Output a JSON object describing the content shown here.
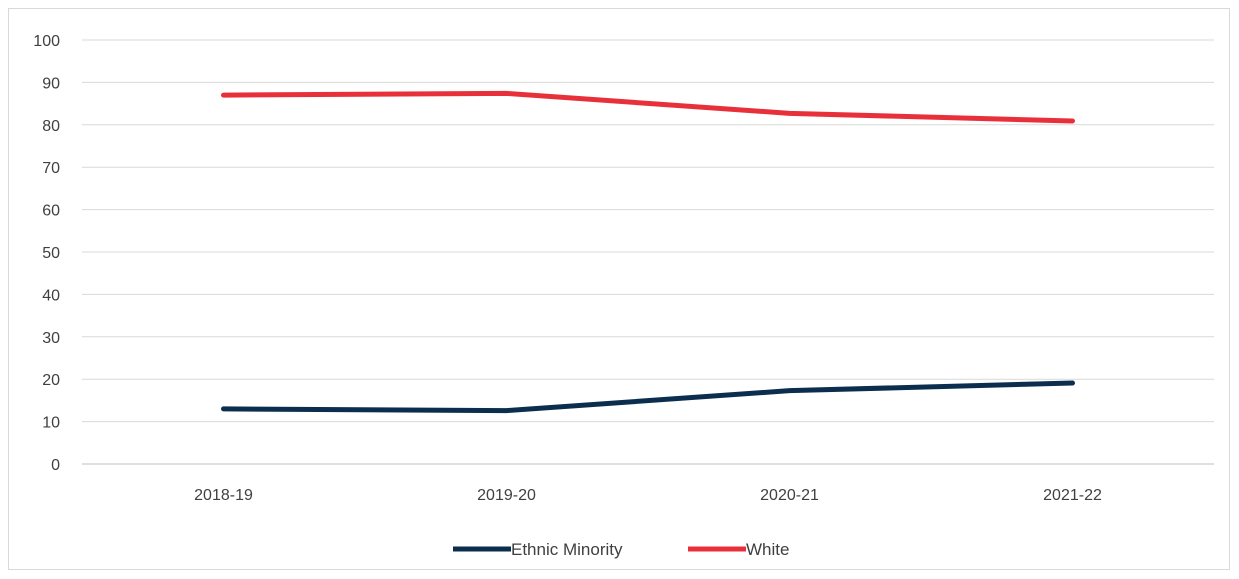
{
  "chart_data": {
    "type": "line",
    "categories": [
      "2018-19",
      "2019-20",
      "2020-21",
      "2021-22"
    ],
    "series": [
      {
        "name": "Ethnic Minority",
        "values": [
          13,
          12.6,
          17.3,
          19.1
        ],
        "color": "#0c2e4e"
      },
      {
        "name": "White",
        "values": [
          87,
          87.4,
          82.7,
          80.9
        ],
        "color": "#e8303a"
      }
    ],
    "title": "",
    "xlabel": "",
    "ylabel": "",
    "ylim": [
      0,
      100
    ],
    "yticks": [
      0,
      10,
      20,
      30,
      40,
      50,
      60,
      70,
      80,
      90,
      100
    ],
    "grid": "horizontal",
    "legend_position": "bottom"
  }
}
